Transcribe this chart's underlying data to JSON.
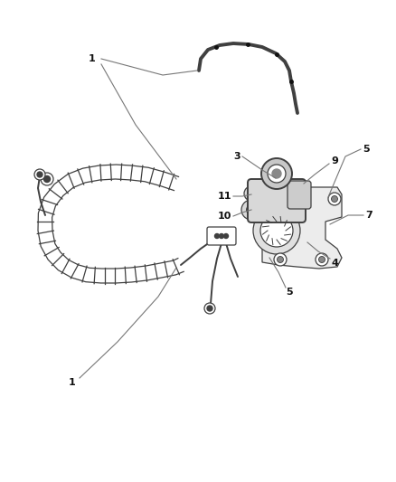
{
  "bg_color": "#ffffff",
  "line_color": "#404040",
  "label_color": "#111111",
  "fig_width": 4.38,
  "fig_height": 5.33,
  "dpi": 100,
  "coil_color": "#404040",
  "tube_color": "#404040",
  "part_fill": "#e8e8e8",
  "part_edge": "#404040"
}
